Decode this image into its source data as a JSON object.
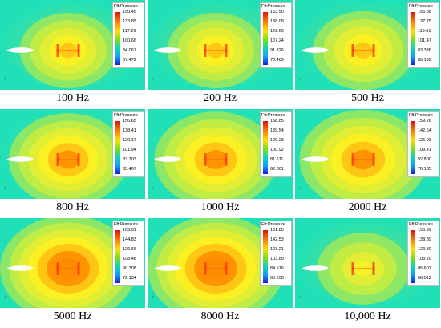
{
  "legend_title": "Fft:Pressure",
  "panels": [
    {
      "caption": "100 Hz",
      "values": [
        "150.45",
        "133.85",
        "117.26",
        "100.66",
        "84.067",
        "67.472"
      ],
      "spread": 0.55,
      "rings": 3
    },
    {
      "caption": "200 Hz",
      "values": [
        "153.50",
        "138.08",
        "122.66",
        "107.24",
        "91.826",
        "76.409"
      ],
      "spread": 0.55,
      "rings": 3
    },
    {
      "caption": "500 Hz",
      "values": [
        "155.88",
        "137.75",
        "119.61",
        "101.47",
        "83.336",
        "65.199"
      ],
      "spread": 0.6,
      "rings": 3
    },
    {
      "caption": "800 Hz",
      "values": [
        "156.65",
        "138.41",
        "120.17",
        "101.94",
        "83.703",
        "65.467"
      ],
      "spread": 0.8,
      "rings": 4
    },
    {
      "caption": "1000 Hz",
      "values": [
        "158.85",
        "139.54",
        "120.23",
        "100.92",
        "81.611",
        "62.301"
      ],
      "spread": 0.85,
      "rings": 4
    },
    {
      "caption": "2000 Hz",
      "values": [
        "159.26",
        "142.64",
        "126.03",
        "109.41",
        "92.800",
        "76.185"
      ],
      "spread": 0.9,
      "rings": 4
    },
    {
      "caption": "5000 Hz",
      "values": [
        "163.01",
        "144.83",
        "126.66",
        "108.48",
        "90.308",
        "72.134"
      ],
      "spread": 1.0,
      "rings": 5
    },
    {
      "caption": "8000 Hz",
      "values": [
        "161.85",
        "142.53",
        "123.21",
        "103.89",
        "84.576",
        "65.258"
      ],
      "spread": 1.0,
      "rings": 5
    },
    {
      "caption": "10,000 Hz",
      "values": [
        "155.99",
        "138.39",
        "120.80",
        "103.20",
        "85.607",
        "68.012"
      ],
      "spread": 0.5,
      "rings": 2
    }
  ]
}
